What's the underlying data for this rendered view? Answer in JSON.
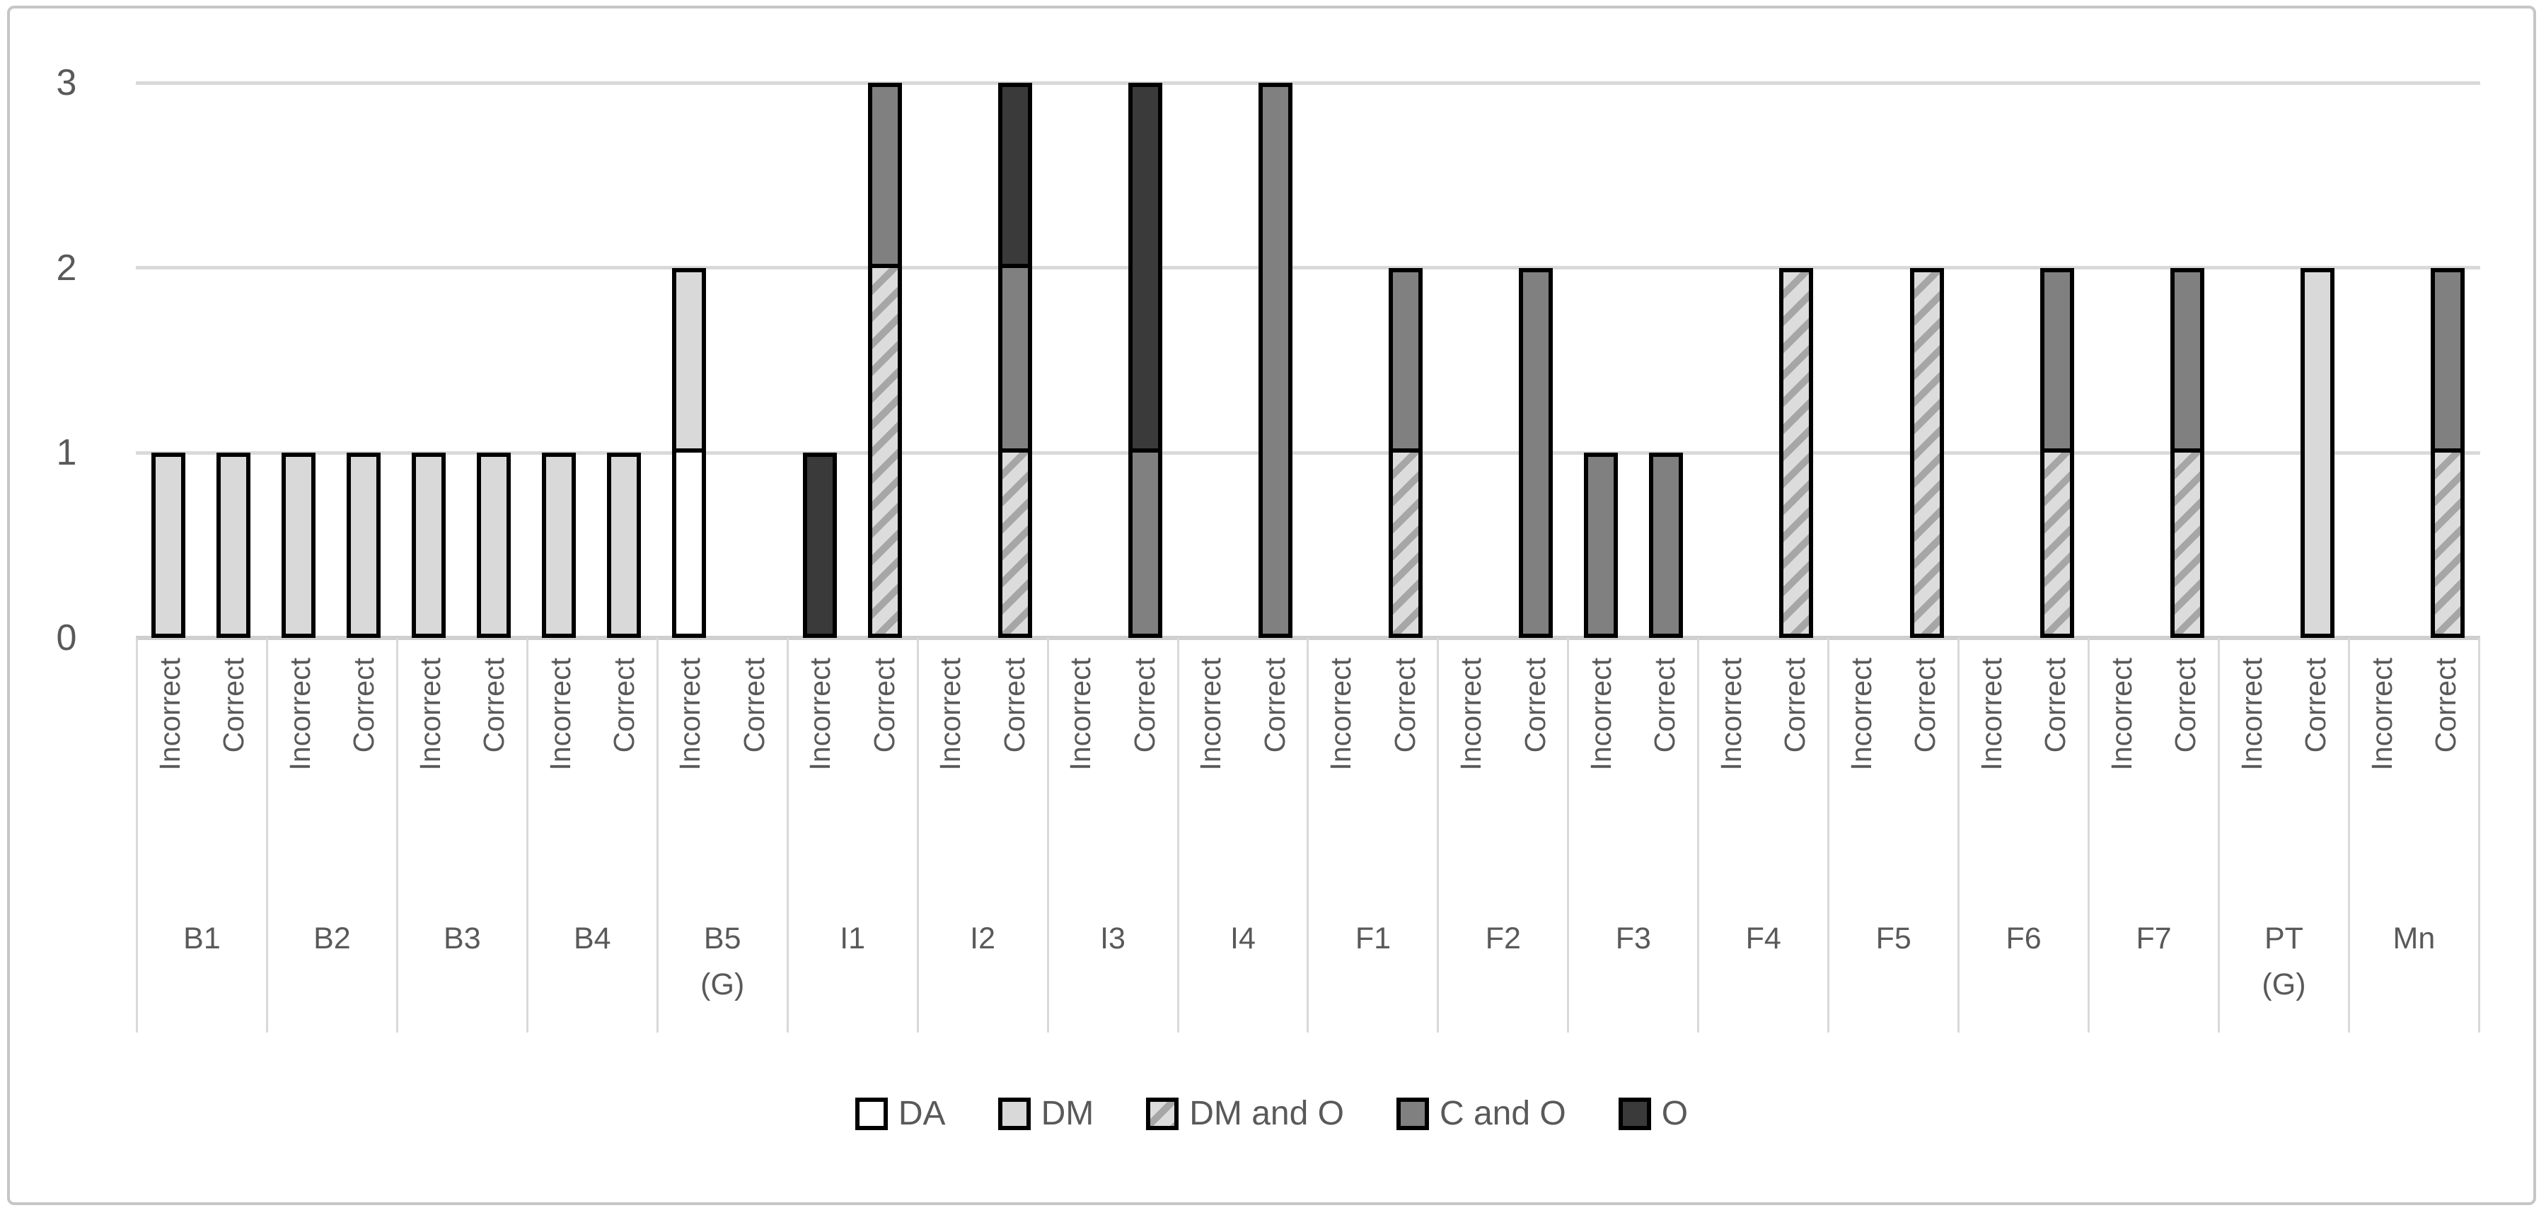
{
  "chart_data": {
    "type": "bar",
    "stacked": true,
    "title": "",
    "xlabel": "",
    "ylabel": "",
    "ylim": [
      0,
      3
    ],
    "yticks": [
      0,
      1,
      2,
      3
    ],
    "grid": "horizontal",
    "legend_position": "bottom-center",
    "bar_labels": [
      "Incorrect",
      "Correct"
    ],
    "series": [
      {
        "name": "DA",
        "fill": "#ffffff",
        "pattern": "solid"
      },
      {
        "name": "DM",
        "fill": "#d9d9d9",
        "pattern": "solid"
      },
      {
        "name": "DM and O",
        "fill": "#dcdcdc",
        "pattern": "diagonal-hatch",
        "pattern_color": "#a6a6a6"
      },
      {
        "name": "C and O",
        "fill": "#808080",
        "pattern": "solid"
      },
      {
        "name": "O",
        "fill": "#3a3a3a",
        "pattern": "solid"
      }
    ],
    "groups": [
      {
        "label": "B1",
        "sublabel": "",
        "incorrect": [
          [
            "DM",
            1
          ]
        ],
        "correct": [
          [
            "DM",
            1
          ]
        ]
      },
      {
        "label": "B2",
        "sublabel": "",
        "incorrect": [
          [
            "DM",
            1
          ]
        ],
        "correct": [
          [
            "DM",
            1
          ]
        ]
      },
      {
        "label": "B3",
        "sublabel": "",
        "incorrect": [
          [
            "DM",
            1
          ]
        ],
        "correct": [
          [
            "DM",
            1
          ]
        ]
      },
      {
        "label": "B4",
        "sublabel": "",
        "incorrect": [
          [
            "DM",
            1
          ]
        ],
        "correct": [
          [
            "DM",
            1
          ]
        ]
      },
      {
        "label": "B5",
        "sublabel": "(G)",
        "incorrect": [
          [
            "DA",
            1
          ],
          [
            "DM",
            1
          ]
        ],
        "correct": []
      },
      {
        "label": "I1",
        "sublabel": "",
        "incorrect": [
          [
            "O",
            1
          ]
        ],
        "correct": [
          [
            "DM and O",
            2
          ],
          [
            "C and O",
            1
          ]
        ]
      },
      {
        "label": "I2",
        "sublabel": "",
        "incorrect": [],
        "correct": [
          [
            "DM and O",
            1
          ],
          [
            "C and O",
            1
          ],
          [
            "O",
            1
          ]
        ]
      },
      {
        "label": "I3",
        "sublabel": "",
        "incorrect": [],
        "correct": [
          [
            "C and O",
            1
          ],
          [
            "O",
            2
          ]
        ]
      },
      {
        "label": "I4",
        "sublabel": "",
        "incorrect": [],
        "correct": [
          [
            "C and O",
            3
          ]
        ]
      },
      {
        "label": "F1",
        "sublabel": "",
        "incorrect": [],
        "correct": [
          [
            "DM and O",
            1
          ],
          [
            "C and O",
            1
          ]
        ]
      },
      {
        "label": "F2",
        "sublabel": "",
        "incorrect": [],
        "correct": [
          [
            "C and O",
            2
          ]
        ]
      },
      {
        "label": "F3",
        "sublabel": "",
        "incorrect": [
          [
            "C and O",
            1
          ]
        ],
        "correct": [
          [
            "C and O",
            1
          ]
        ]
      },
      {
        "label": "F4",
        "sublabel": "",
        "incorrect": [],
        "correct": [
          [
            "DM and O",
            2
          ]
        ]
      },
      {
        "label": "F5",
        "sublabel": "",
        "incorrect": [],
        "correct": [
          [
            "DM and O",
            2
          ]
        ]
      },
      {
        "label": "F6",
        "sublabel": "",
        "incorrect": [],
        "correct": [
          [
            "DM and O",
            1
          ],
          [
            "C and O",
            1
          ]
        ]
      },
      {
        "label": "F7",
        "sublabel": "",
        "incorrect": [],
        "correct": [
          [
            "DM and O",
            1
          ],
          [
            "C and O",
            1
          ]
        ]
      },
      {
        "label": "PT",
        "sublabel": "(G)",
        "incorrect": [],
        "correct": [
          [
            "DM",
            2
          ]
        ]
      },
      {
        "label": "Mn",
        "sublabel": "",
        "incorrect": [],
        "correct": [
          [
            "DM and O",
            1
          ],
          [
            "C and O",
            1
          ]
        ]
      }
    ]
  },
  "colors": {
    "text": "#595959",
    "gridline": "#d9d9d9",
    "axis_line": "#cfcfcf",
    "bar_border": "#000000",
    "frame_border": "#c6c6c6",
    "background": "#ffffff"
  }
}
